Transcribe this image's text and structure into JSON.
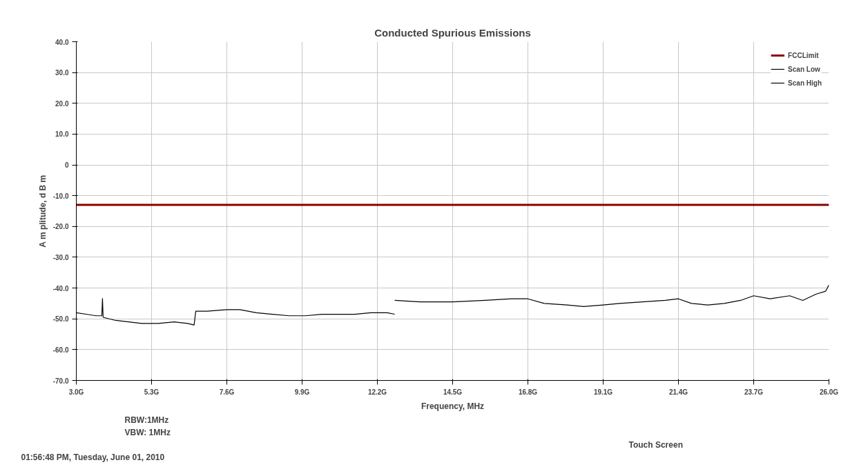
{
  "chart_data": {
    "type": "line",
    "title": "Conducted Spurious Emissions",
    "xlabel": "Frequency, MHz",
    "ylabel": "A m plitude, d B m",
    "xlim": [
      3.0,
      26.0
    ],
    "ylim": [
      -70,
      40
    ],
    "xticks": [
      {
        "value": 3.0,
        "label": "3.0G"
      },
      {
        "value": 5.3,
        "label": "5.3G"
      },
      {
        "value": 7.6,
        "label": "7.6G"
      },
      {
        "value": 9.9,
        "label": "9.9G"
      },
      {
        "value": 12.2,
        "label": "12.2G"
      },
      {
        "value": 14.5,
        "label": "14.5G"
      },
      {
        "value": 16.8,
        "label": "16.8G"
      },
      {
        "value": 19.1,
        "label": "19.1G"
      },
      {
        "value": 21.4,
        "label": "21.4G"
      },
      {
        "value": 23.7,
        "label": "23.7G"
      },
      {
        "value": 26.0,
        "label": "26.0G"
      }
    ],
    "yticks": [
      {
        "value": 40,
        "label": "40.0"
      },
      {
        "value": 30,
        "label": "30.0"
      },
      {
        "value": 20,
        "label": "20.0"
      },
      {
        "value": 10,
        "label": "10.0"
      },
      0,
      {
        "value": -10,
        "label": "-10.0"
      },
      {
        "value": -20,
        "label": "-20.0"
      },
      {
        "value": -30,
        "label": "-30.0"
      },
      {
        "value": -40,
        "label": "-40.0"
      },
      {
        "value": -50,
        "label": "-50.0"
      },
      {
        "value": -60,
        "label": "-60.0"
      },
      {
        "value": -70,
        "label": "-70.0"
      }
    ],
    "grid": true,
    "legend": "top right",
    "line_style": "solid",
    "marker": "none",
    "series": [
      {
        "name": "FCCLimit",
        "color": "#8b0000",
        "x": [
          3.0,
          26.0
        ],
        "values": [
          -13,
          -13
        ]
      },
      {
        "name": "Scan Low",
        "color": "#000000",
        "x": [
          3.0,
          3.3,
          3.6,
          3.78,
          3.8,
          3.82,
          4.2,
          4.6,
          5.0,
          5.5,
          6.0,
          6.4,
          6.6,
          6.65,
          7.0,
          7.6,
          8.0,
          8.5,
          9.0,
          9.5,
          10.0,
          10.5,
          11.0,
          11.5,
          12.0,
          12.5,
          12.73
        ],
        "values": [
          -48,
          -48.5,
          -49,
          -49,
          -43.4,
          -49.5,
          -50.5,
          -51,
          -51.5,
          -51.5,
          -51,
          -51.5,
          -52,
          -47.5,
          -47.5,
          -47,
          -47,
          -48,
          -48.5,
          -49,
          -49,
          -48.5,
          -48.5,
          -48.5,
          -48,
          -48,
          -48.5
        ]
      },
      {
        "name": "Scan High",
        "color": "#000000",
        "x": [
          12.73,
          13.5,
          14.5,
          15.5,
          16.3,
          16.8,
          17.3,
          18.0,
          18.5,
          19.1,
          19.6,
          20.3,
          21.0,
          21.4,
          21.8,
          22.3,
          22.8,
          23.3,
          23.7,
          24.2,
          24.8,
          25.2,
          25.6,
          25.9,
          26.0
        ],
        "values": [
          -44,
          -44.5,
          -44.5,
          -44,
          -43.5,
          -43.5,
          -45,
          -45.5,
          -46,
          -45.5,
          -45,
          -44.5,
          -44,
          -43.5,
          -45,
          -45.5,
          -45,
          -44,
          -42.5,
          -43.5,
          -42.5,
          -44,
          -42,
          -41,
          -39
        ]
      }
    ],
    "annotations": [
      "RBW:1MHz",
      "VBW: 1MHz",
      "Touch Screen",
      "01:56:48 PM, Tuesday, June 01, 2010"
    ]
  }
}
